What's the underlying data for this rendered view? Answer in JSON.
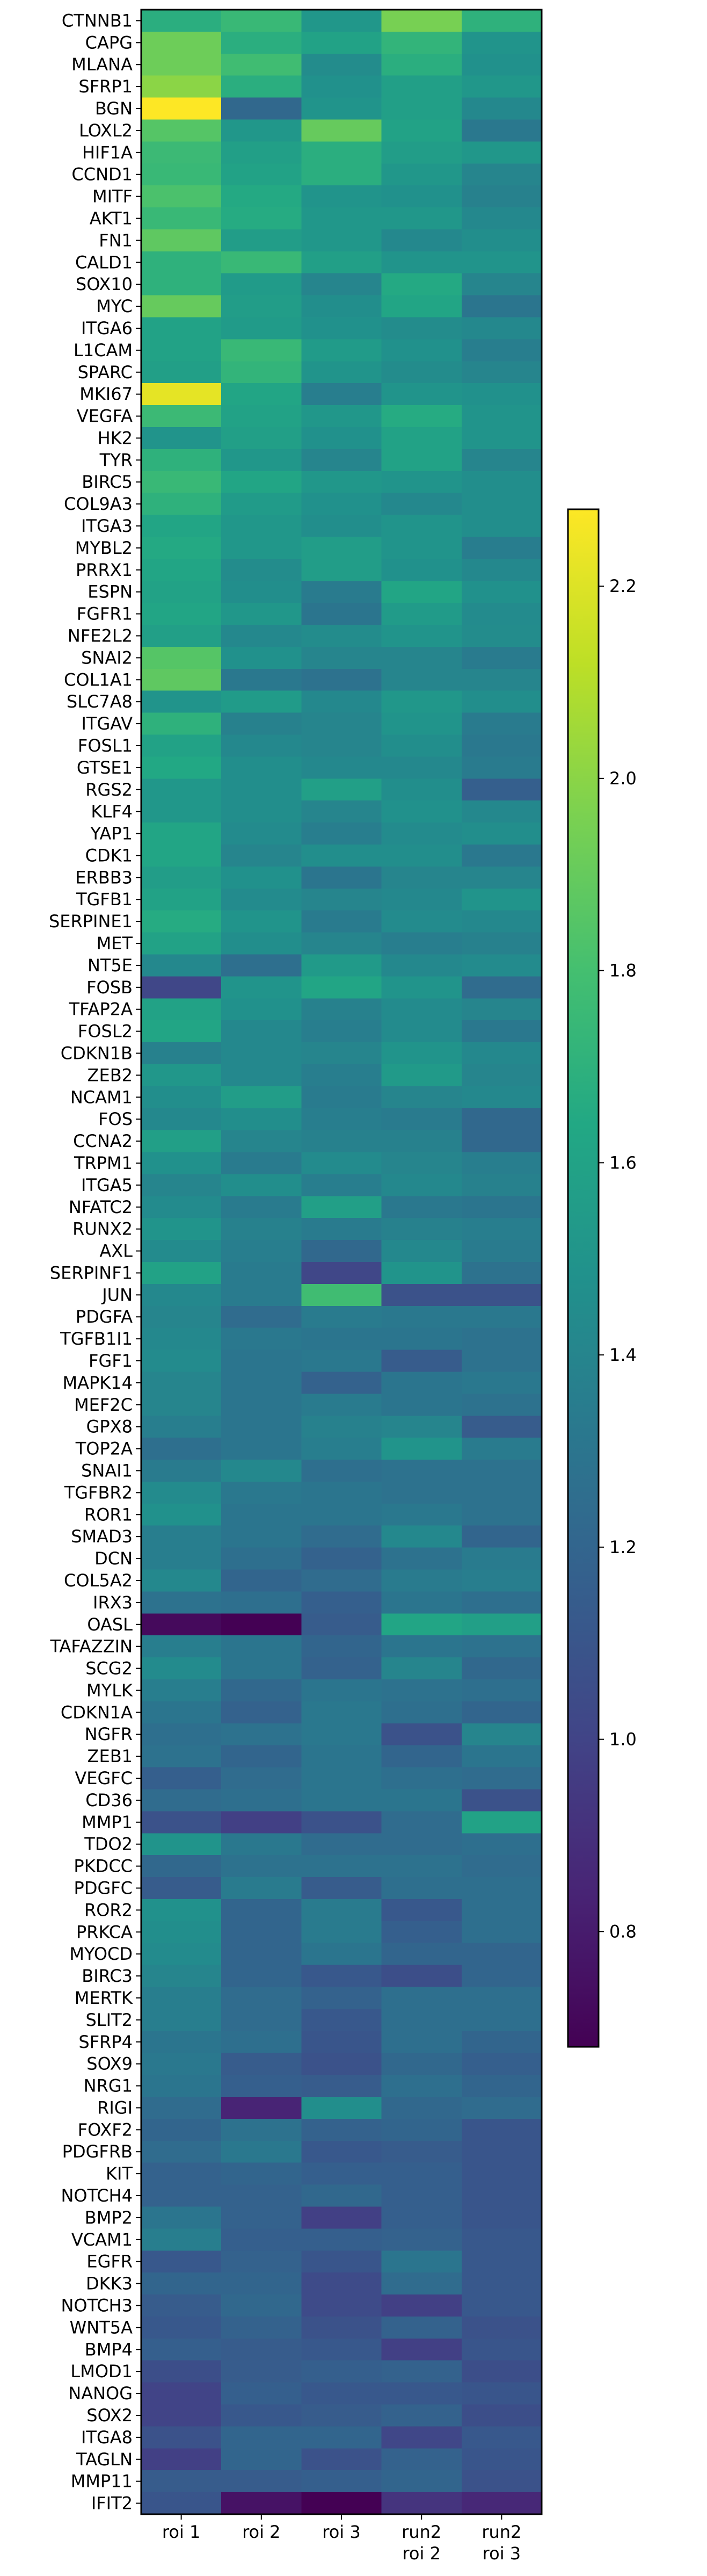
{
  "chart_data": {
    "type": "heatmap",
    "title": "",
    "xlabel": "",
    "ylabel": "",
    "columns": [
      [
        "roi 1"
      ],
      [
        "roi 2"
      ],
      [
        "roi 3"
      ],
      [
        "run2",
        "roi 2"
      ],
      [
        "run2",
        "roi 3"
      ]
    ],
    "rows": [
      "CTNNB1",
      "CAPG",
      "MLANA",
      "SFRP1",
      "BGN",
      "LOXL2",
      "HIF1A",
      "CCND1",
      "MITF",
      "AKT1",
      "FN1",
      "CALD1",
      "SOX10",
      "MYC",
      "ITGA6",
      "L1CAM",
      "SPARC",
      "MKI67",
      "VEGFA",
      "HK2",
      "TYR",
      "BIRC5",
      "COL9A3",
      "ITGA3",
      "MYBL2",
      "PRRX1",
      "ESPN",
      "FGFR1",
      "NFE2L2",
      "SNAI2",
      "COL1A1",
      "SLC7A8",
      "ITGAV",
      "FOSL1",
      "GTSE1",
      "RGS2",
      "KLF4",
      "YAP1",
      "CDK1",
      "ERBB3",
      "TGFB1",
      "SERPINE1",
      "MET",
      "NT5E",
      "FOSB",
      "TFAP2A",
      "FOSL2",
      "CDKN1B",
      "ZEB2",
      "NCAM1",
      "FOS",
      "CCNA2",
      "TRPM1",
      "ITGA5",
      "NFATC2",
      "RUNX2",
      "AXL",
      "SERPINF1",
      "JUN",
      "PDGFA",
      "TGFB1I1",
      "FGF1",
      "MAPK14",
      "MEF2C",
      "GPX8",
      "TOP2A",
      "SNAI1",
      "TGFBR2",
      "ROR1",
      "SMAD3",
      "DCN",
      "COL5A2",
      "IRX3",
      "OASL",
      "TAFAZZIN",
      "SCG2",
      "MYLK",
      "CDKN1A",
      "NGFR",
      "ZEB1",
      "VEGFC",
      "CD36",
      "MMP1",
      "TDO2",
      "PKDCC",
      "PDGFC",
      "ROR2",
      "PRKCA",
      "MYOCD",
      "BIRC3",
      "MERTK",
      "SLIT2",
      "SFRP4",
      "SOX9",
      "NRG1",
      "RIGI",
      "FOXF2",
      "PDGFRB",
      "KIT",
      "NOTCH4",
      "BMP2",
      "VCAM1",
      "EGFR",
      "DKK3",
      "NOTCH3",
      "WNT5A",
      "BMP4",
      "LMOD1",
      "NANOG",
      "SOX2",
      "ITGA8",
      "TAGLN",
      "MMP11",
      "IFIT2"
    ],
    "values": [
      [
        1.68,
        1.75,
        1.52,
        1.95,
        1.7
      ],
      [
        1.92,
        1.68,
        1.6,
        1.72,
        1.5
      ],
      [
        1.92,
        1.78,
        1.45,
        1.68,
        1.48
      ],
      [
        2.0,
        1.68,
        1.48,
        1.58,
        1.52
      ],
      [
        2.28,
        1.22,
        1.5,
        1.58,
        1.42
      ],
      [
        1.85,
        1.52,
        1.9,
        1.6,
        1.32
      ],
      [
        1.76,
        1.58,
        1.68,
        1.56,
        1.52
      ],
      [
        1.75,
        1.6,
        1.68,
        1.52,
        1.4
      ],
      [
        1.82,
        1.65,
        1.5,
        1.48,
        1.38
      ],
      [
        1.75,
        1.66,
        1.52,
        1.52,
        1.42
      ],
      [
        1.88,
        1.56,
        1.52,
        1.42,
        1.46
      ],
      [
        1.7,
        1.75,
        1.58,
        1.5,
        1.5
      ],
      [
        1.7,
        1.55,
        1.4,
        1.65,
        1.4
      ],
      [
        1.9,
        1.56,
        1.46,
        1.62,
        1.3
      ],
      [
        1.6,
        1.55,
        1.48,
        1.45,
        1.42
      ],
      [
        1.6,
        1.75,
        1.55,
        1.48,
        1.36
      ],
      [
        1.58,
        1.72,
        1.5,
        1.45,
        1.4
      ],
      [
        2.22,
        1.62,
        1.36,
        1.5,
        1.48
      ],
      [
        1.76,
        1.6,
        1.52,
        1.66,
        1.5
      ],
      [
        1.5,
        1.58,
        1.48,
        1.6,
        1.5
      ],
      [
        1.7,
        1.52,
        1.4,
        1.6,
        1.4
      ],
      [
        1.75,
        1.62,
        1.52,
        1.5,
        1.46
      ],
      [
        1.7,
        1.55,
        1.48,
        1.42,
        1.46
      ],
      [
        1.62,
        1.52,
        1.46,
        1.5,
        1.46
      ],
      [
        1.65,
        1.52,
        1.56,
        1.5,
        1.35
      ],
      [
        1.62,
        1.45,
        1.56,
        1.48,
        1.42
      ],
      [
        1.6,
        1.46,
        1.34,
        1.62,
        1.48
      ],
      [
        1.62,
        1.52,
        1.3,
        1.55,
        1.44
      ],
      [
        1.58,
        1.42,
        1.45,
        1.5,
        1.45
      ],
      [
        1.85,
        1.48,
        1.4,
        1.4,
        1.34
      ],
      [
        1.88,
        1.32,
        1.28,
        1.4,
        1.4
      ],
      [
        1.5,
        1.55,
        1.42,
        1.52,
        1.46
      ],
      [
        1.7,
        1.38,
        1.4,
        1.5,
        1.34
      ],
      [
        1.6,
        1.42,
        1.4,
        1.46,
        1.32
      ],
      [
        1.64,
        1.46,
        1.42,
        1.42,
        1.34
      ],
      [
        1.52,
        1.46,
        1.58,
        1.46,
        1.16
      ],
      [
        1.52,
        1.46,
        1.4,
        1.48,
        1.42
      ],
      [
        1.62,
        1.44,
        1.36,
        1.44,
        1.46
      ],
      [
        1.62,
        1.4,
        1.46,
        1.46,
        1.32
      ],
      [
        1.56,
        1.48,
        1.3,
        1.4,
        1.4
      ],
      [
        1.6,
        1.44,
        1.4,
        1.42,
        1.5
      ],
      [
        1.66,
        1.5,
        1.34,
        1.44,
        1.42
      ],
      [
        1.6,
        1.46,
        1.4,
        1.36,
        1.38
      ],
      [
        1.42,
        1.26,
        1.54,
        1.42,
        1.44
      ],
      [
        1.02,
        1.5,
        1.62,
        1.5,
        1.24
      ],
      [
        1.6,
        1.48,
        1.38,
        1.44,
        1.4
      ],
      [
        1.62,
        1.42,
        1.36,
        1.44,
        1.32
      ],
      [
        1.38,
        1.42,
        1.4,
        1.5,
        1.42
      ],
      [
        1.52,
        1.42,
        1.36,
        1.54,
        1.4
      ],
      [
        1.46,
        1.56,
        1.34,
        1.4,
        1.42
      ],
      [
        1.42,
        1.46,
        1.36,
        1.34,
        1.22
      ],
      [
        1.58,
        1.4,
        1.38,
        1.38,
        1.22
      ],
      [
        1.48,
        1.34,
        1.44,
        1.4,
        1.36
      ],
      [
        1.4,
        1.46,
        1.36,
        1.42,
        1.38
      ],
      [
        1.44,
        1.34,
        1.58,
        1.32,
        1.3
      ],
      [
        1.5,
        1.38,
        1.34,
        1.38,
        1.36
      ],
      [
        1.44,
        1.36,
        1.22,
        1.42,
        1.34
      ],
      [
        1.6,
        1.34,
        1.02,
        1.5,
        1.28
      ],
      [
        1.42,
        1.34,
        1.78,
        1.08,
        1.08
      ],
      [
        1.4,
        1.24,
        1.34,
        1.32,
        1.32
      ],
      [
        1.42,
        1.32,
        1.3,
        1.3,
        1.28
      ],
      [
        1.44,
        1.3,
        1.32,
        1.14,
        1.28
      ],
      [
        1.4,
        1.3,
        1.18,
        1.3,
        1.32
      ],
      [
        1.4,
        1.3,
        1.34,
        1.3,
        1.28
      ],
      [
        1.36,
        1.3,
        1.38,
        1.4,
        1.14
      ],
      [
        1.26,
        1.3,
        1.36,
        1.5,
        1.34
      ],
      [
        1.34,
        1.42,
        1.26,
        1.28,
        1.28
      ],
      [
        1.44,
        1.32,
        1.3,
        1.28,
        1.28
      ],
      [
        1.48,
        1.3,
        1.3,
        1.32,
        1.28
      ],
      [
        1.36,
        1.3,
        1.24,
        1.42,
        1.2
      ],
      [
        1.36,
        1.26,
        1.18,
        1.28,
        1.34
      ],
      [
        1.42,
        1.2,
        1.24,
        1.34,
        1.36
      ],
      [
        1.28,
        1.26,
        1.16,
        1.3,
        1.26
      ],
      [
        0.72,
        0.68,
        1.14,
        1.62,
        1.58
      ],
      [
        1.36,
        1.3,
        1.2,
        1.3,
        1.28
      ],
      [
        1.44,
        1.3,
        1.18,
        1.4,
        1.22
      ],
      [
        1.36,
        1.22,
        1.3,
        1.28,
        1.26
      ],
      [
        1.3,
        1.18,
        1.32,
        1.26,
        1.2
      ],
      [
        1.26,
        1.28,
        1.32,
        1.08,
        1.4
      ],
      [
        1.28,
        1.2,
        1.3,
        1.2,
        1.3
      ],
      [
        1.16,
        1.24,
        1.3,
        1.26,
        1.24
      ],
      [
        1.24,
        1.26,
        1.3,
        1.3,
        1.08
      ],
      [
        1.08,
        0.98,
        1.08,
        1.24,
        1.6
      ],
      [
        1.5,
        1.32,
        1.24,
        1.24,
        1.26
      ],
      [
        1.22,
        1.28,
        1.28,
        1.28,
        1.24
      ],
      [
        1.14,
        1.34,
        1.14,
        1.26,
        1.26
      ],
      [
        1.48,
        1.2,
        1.34,
        1.12,
        1.26
      ],
      [
        1.46,
        1.2,
        1.34,
        1.16,
        1.26
      ],
      [
        1.44,
        1.2,
        1.3,
        1.2,
        1.2
      ],
      [
        1.4,
        1.2,
        1.12,
        1.06,
        1.2
      ],
      [
        1.36,
        1.24,
        1.18,
        1.26,
        1.26
      ],
      [
        1.36,
        1.24,
        1.12,
        1.26,
        1.26
      ],
      [
        1.3,
        1.26,
        1.1,
        1.26,
        1.2
      ],
      [
        1.32,
        1.14,
        1.08,
        1.22,
        1.16
      ],
      [
        1.3,
        1.16,
        1.14,
        1.26,
        1.2
      ],
      [
        1.24,
        0.84,
        1.46,
        1.22,
        1.24
      ],
      [
        1.2,
        1.28,
        1.18,
        1.2,
        1.1
      ],
      [
        1.24,
        1.32,
        1.12,
        1.14,
        1.1
      ],
      [
        1.18,
        1.2,
        1.16,
        1.16,
        1.1
      ],
      [
        1.18,
        1.18,
        1.22,
        1.16,
        1.1
      ],
      [
        1.3,
        1.18,
        0.98,
        1.16,
        1.1
      ],
      [
        1.36,
        1.16,
        1.16,
        1.18,
        1.12
      ],
      [
        1.12,
        1.18,
        1.1,
        1.3,
        1.12
      ],
      [
        1.2,
        1.2,
        1.04,
        1.24,
        1.12
      ],
      [
        1.14,
        1.22,
        1.04,
        0.98,
        1.12
      ],
      [
        1.12,
        1.18,
        1.08,
        1.18,
        1.08
      ],
      [
        1.16,
        1.14,
        1.12,
        0.98,
        1.1
      ],
      [
        1.06,
        1.14,
        1.16,
        1.18,
        1.06
      ],
      [
        1.0,
        1.16,
        1.12,
        1.12,
        1.1
      ],
      [
        1.0,
        1.12,
        1.14,
        1.18,
        1.06
      ],
      [
        1.08,
        1.2,
        1.2,
        1.02,
        1.12
      ],
      [
        0.98,
        1.2,
        1.08,
        1.18,
        1.1
      ],
      [
        1.14,
        1.14,
        1.16,
        1.2,
        1.08
      ],
      [
        1.1,
        0.76,
        0.68,
        0.92,
        0.86
      ]
    ],
    "colorbar": {
      "ticks": [
        0.8,
        1.0,
        1.2,
        1.4,
        1.6,
        1.8,
        2.0,
        2.2
      ],
      "min": 0.68,
      "max": 2.28
    },
    "colormap": "viridis",
    "grid": false,
    "legend": "colorbar right"
  }
}
